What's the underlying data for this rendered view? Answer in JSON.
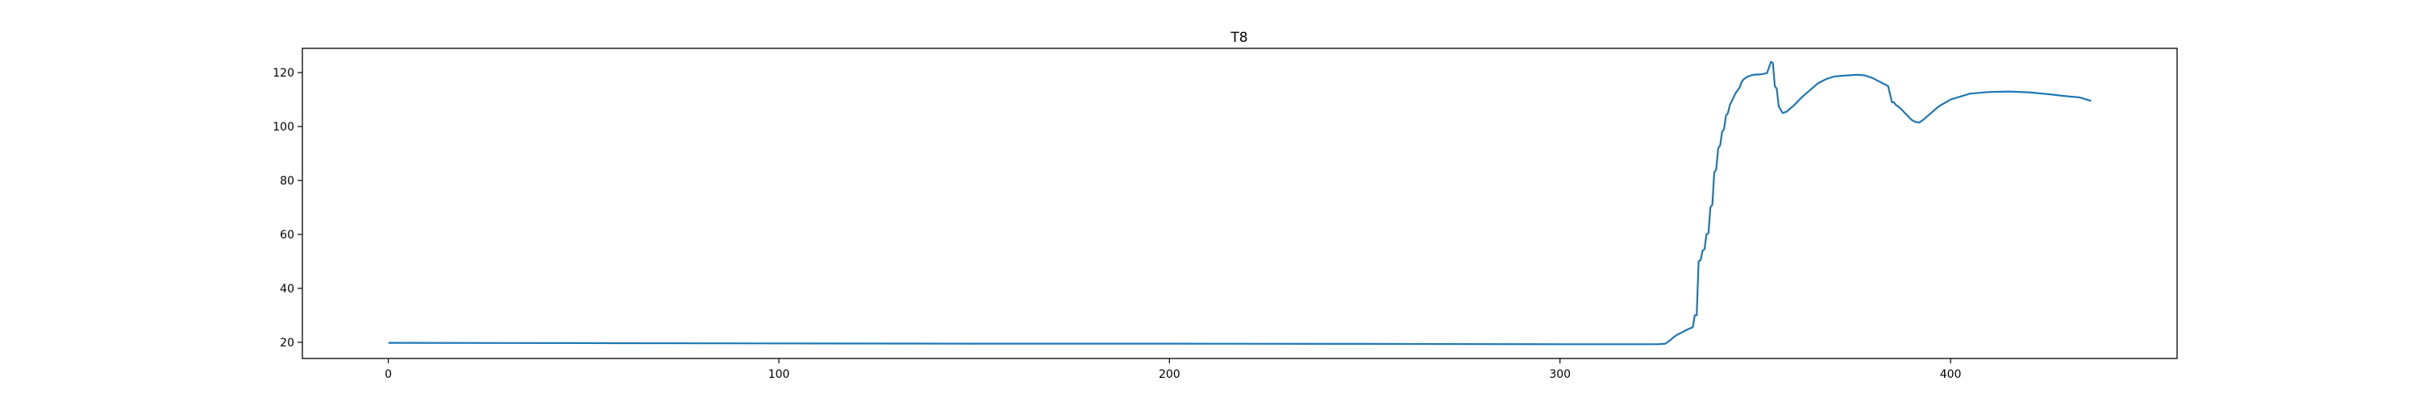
{
  "chart_data": {
    "type": "line",
    "title": "T8",
    "xlabel": "",
    "ylabel": "",
    "xlim": [
      -22,
      458
    ],
    "ylim": [
      14,
      129
    ],
    "x_ticks": [
      0,
      100,
      200,
      300,
      400
    ],
    "y_ticks": [
      20,
      40,
      60,
      80,
      100,
      120
    ],
    "grid": false,
    "legend": "none",
    "series": [
      {
        "color": "#1f77b4",
        "x": [
          0,
          50,
          100,
          150,
          200,
          250,
          300,
          325,
          327,
          328,
          329,
          330,
          331,
          332,
          333,
          334,
          334.5,
          335,
          335.5,
          336,
          336.5,
          337,
          337.5,
          338,
          338.5,
          339,
          339.5,
          340,
          340.5,
          341,
          341.5,
          342,
          342.5,
          343,
          343.5,
          344,
          344.5,
          345,
          345.5,
          346,
          346.5,
          347,
          348,
          349,
          350,
          351,
          352,
          353,
          354,
          354.5,
          355,
          355.5,
          356,
          357,
          358,
          360,
          362,
          364,
          366,
          368,
          370,
          372,
          374,
          376,
          378,
          380,
          382,
          384,
          385,
          385.5,
          386,
          387,
          388,
          389,
          390,
          391,
          392,
          393,
          395,
          397,
          400,
          405,
          410,
          415,
          420,
          425,
          430,
          433,
          434,
          436
        ],
        "y": [
          19.8,
          19.7,
          19.6,
          19.5,
          19.5,
          19.4,
          19.3,
          19.3,
          19.5,
          20.5,
          21.8,
          22.8,
          23.5,
          24.3,
          25.0,
          25.6,
          30.0,
          30.0,
          50.0,
          50.5,
          54.0,
          54.5,
          60.0,
          60.5,
          70.0,
          71.0,
          83.0,
          84.0,
          92.0,
          93.0,
          98.0,
          99.0,
          104.0,
          105.0,
          108.0,
          109.5,
          111.0,
          112.5,
          113.5,
          114.5,
          116.5,
          117.5,
          118.5,
          119.0,
          119.3,
          119.3,
          119.5,
          119.8,
          124.0,
          123.5,
          115.0,
          114.0,
          107.5,
          105.0,
          105.5,
          108.0,
          111.0,
          113.5,
          116.0,
          117.5,
          118.5,
          118.8,
          119.0,
          119.2,
          119.0,
          118.0,
          116.5,
          115.0,
          109.0,
          109.0,
          108.0,
          107.0,
          105.5,
          104.0,
          102.5,
          101.7,
          101.5,
          102.5,
          105.0,
          107.5,
          110.0,
          112.2,
          112.8,
          113.0,
          112.7,
          112.0,
          111.2,
          110.8,
          110.4,
          109.5
        ]
      }
    ]
  }
}
